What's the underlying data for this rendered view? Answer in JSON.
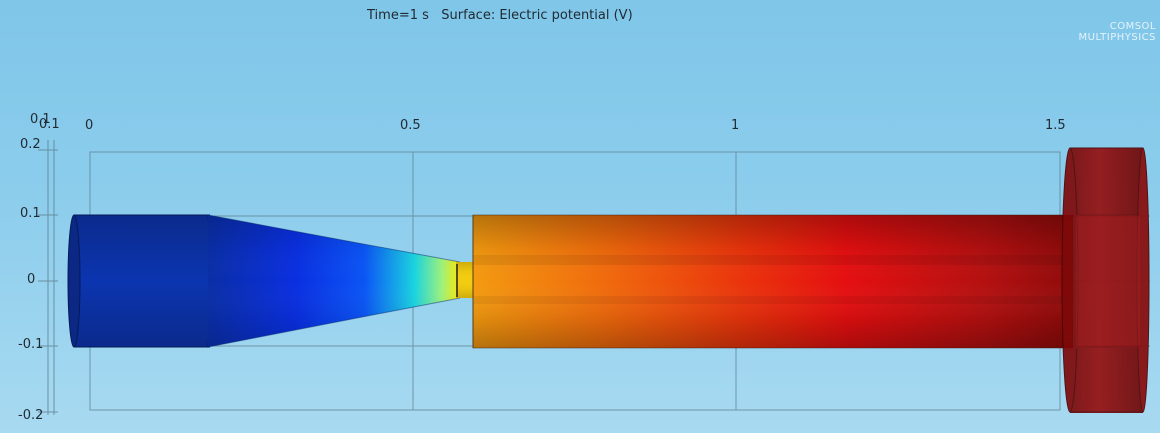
{
  "title": {
    "time_label": "Time=1 s",
    "surface_label": "Surface: Electric potential (V)"
  },
  "logo": {
    "line1": "COMSOL",
    "line2": "MULTIPHYSICS"
  },
  "axes": {
    "x_ticks": [
      "0",
      "0.5",
      "1",
      "1.5"
    ],
    "x_ticks_secondary": [
      "0.1",
      "0.1"
    ],
    "y_ticks": [
      "0.2",
      "0.1",
      "0",
      "-0.1",
      "-0.2"
    ]
  },
  "plot": {
    "variable": "Electric potential (V)",
    "colormap": "rainbow (blue = low, red = high)",
    "geometry": [
      "left cylinder",
      "cone",
      "narrow neck",
      "long cylinder",
      "end disk"
    ],
    "colors": {
      "low": "#0b2fa8",
      "mid": "#ffd400",
      "high": "#e30f0f",
      "disk": "#8a0a0a",
      "background": "#87ceeb"
    }
  }
}
